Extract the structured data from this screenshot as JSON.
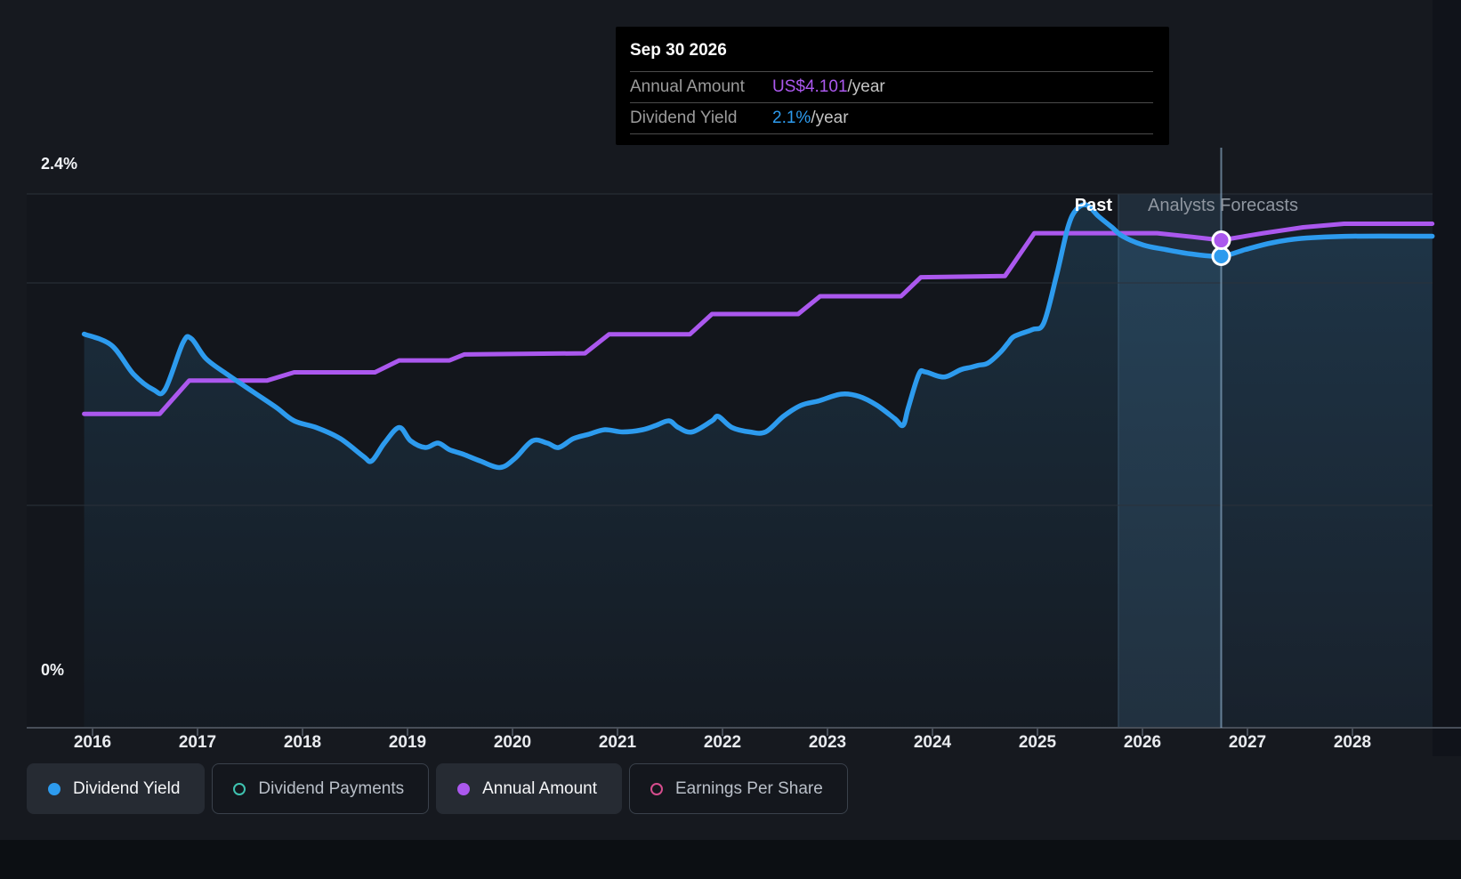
{
  "colors": {
    "background": "#16191F",
    "plot_background": "#13161C",
    "gridline": "#2B313A",
    "axis": "#474E58",
    "yield_blue": "#2D9BEE",
    "amount_purple": "#AB58EE",
    "payments_teal": "#3FC3B0",
    "eps_pink": "#D64D8D",
    "forecast_overlay": "rgba(108,170,220,0.055)",
    "hover_band": "rgba(120,185,235,0.10)",
    "area_fill_top": "rgba(58,142,196,0.22)",
    "area_fill_bottom": "rgba(58,142,196,0.04)"
  },
  "tooltip": {
    "title": "Sep 30 2026",
    "rows": [
      {
        "label": "Annual Amount",
        "value": "US$4.101",
        "suffix": "/year",
        "color": "#AB58EE"
      },
      {
        "label": "Dividend Yield",
        "value": "2.1%",
        "suffix": "/year",
        "color": "#2D9BEE"
      }
    ]
  },
  "legend": {
    "items": [
      {
        "label": "Dividend Yield",
        "color": "#2D9BEE",
        "marker": "filled",
        "active": true
      },
      {
        "label": "Dividend Payments",
        "color": "#3FC3B0",
        "marker": "ring",
        "active": false
      },
      {
        "label": "Annual Amount",
        "color": "#AB58EE",
        "marker": "filled",
        "active": true
      },
      {
        "label": "Earnings Per Share",
        "color": "#D64D8D",
        "marker": "ring",
        "active": false
      }
    ]
  },
  "chart_data": {
    "type": "line",
    "x_axis": {
      "ticks": [
        2016,
        2017,
        2018,
        2019,
        2020,
        2021,
        2022,
        2023,
        2024,
        2025,
        2026,
        2027,
        2028
      ],
      "range": [
        2015.92,
        2028.76
      ],
      "grid": false
    },
    "y_axis": {
      "unit": "%",
      "range": [
        0,
        2.4
      ],
      "label_top": "2.4%",
      "label_bottom": "0%",
      "gridlines_pct": [
        1.0,
        2.0,
        2.4
      ],
      "grid": true
    },
    "annotations": {
      "past_label": "Past",
      "forecast_label": "Analysts Forecasts",
      "forecast_start_year": 2025.77,
      "hover_year": 2026.75
    },
    "series": [
      {
        "name": "Dividend Yield",
        "type": "line",
        "unit": "%",
        "color": "#2D9BEE",
        "area_fill": true,
        "points": [
          [
            2015.92,
            1.77
          ],
          [
            2016.18,
            1.72
          ],
          [
            2016.39,
            1.59
          ],
          [
            2016.58,
            1.52
          ],
          [
            2016.69,
            1.52
          ],
          [
            2016.86,
            1.73
          ],
          [
            2016.94,
            1.75
          ],
          [
            2017.08,
            1.66
          ],
          [
            2017.28,
            1.59
          ],
          [
            2017.53,
            1.51
          ],
          [
            2017.75,
            1.44
          ],
          [
            2017.92,
            1.38
          ],
          [
            2018.13,
            1.35
          ],
          [
            2018.36,
            1.3
          ],
          [
            2018.58,
            1.22
          ],
          [
            2018.66,
            1.2
          ],
          [
            2018.78,
            1.28
          ],
          [
            2018.92,
            1.35
          ],
          [
            2019.03,
            1.29
          ],
          [
            2019.17,
            1.26
          ],
          [
            2019.29,
            1.28
          ],
          [
            2019.4,
            1.25
          ],
          [
            2019.53,
            1.23
          ],
          [
            2019.69,
            1.2
          ],
          [
            2019.88,
            1.17
          ],
          [
            2020.02,
            1.21
          ],
          [
            2020.19,
            1.29
          ],
          [
            2020.33,
            1.28
          ],
          [
            2020.44,
            1.26
          ],
          [
            2020.58,
            1.3
          ],
          [
            2020.73,
            1.32
          ],
          [
            2020.88,
            1.34
          ],
          [
            2021.05,
            1.33
          ],
          [
            2021.24,
            1.34
          ],
          [
            2021.37,
            1.36
          ],
          [
            2021.49,
            1.38
          ],
          [
            2021.58,
            1.35
          ],
          [
            2021.71,
            1.33
          ],
          [
            2021.9,
            1.38
          ],
          [
            2021.96,
            1.4
          ],
          [
            2022.09,
            1.35
          ],
          [
            2022.26,
            1.33
          ],
          [
            2022.41,
            1.33
          ],
          [
            2022.58,
            1.4
          ],
          [
            2022.75,
            1.45
          ],
          [
            2022.92,
            1.47
          ],
          [
            2023.13,
            1.5
          ],
          [
            2023.3,
            1.49
          ],
          [
            2023.47,
            1.45
          ],
          [
            2023.64,
            1.39
          ],
          [
            2023.72,
            1.36
          ],
          [
            2023.77,
            1.44
          ],
          [
            2023.87,
            1.59
          ],
          [
            2023.93,
            1.6
          ],
          [
            2024.06,
            1.58
          ],
          [
            2024.14,
            1.58
          ],
          [
            2024.27,
            1.61
          ],
          [
            2024.36,
            1.62
          ],
          [
            2024.44,
            1.63
          ],
          [
            2024.53,
            1.64
          ],
          [
            2024.65,
            1.69
          ],
          [
            2024.72,
            1.73
          ],
          [
            2024.78,
            1.76
          ],
          [
            2024.95,
            1.79
          ],
          [
            2025.06,
            1.82
          ],
          [
            2025.18,
            2.03
          ],
          [
            2025.29,
            2.25
          ],
          [
            2025.37,
            2.33
          ],
          [
            2025.47,
            2.35
          ],
          [
            2025.58,
            2.3
          ],
          [
            2025.71,
            2.25
          ],
          [
            2025.81,
            2.21
          ],
          [
            2026.01,
            2.17
          ],
          [
            2026.22,
            2.15
          ],
          [
            2026.47,
            2.13
          ],
          [
            2026.75,
            2.12
          ],
          [
            2026.98,
            2.15
          ],
          [
            2027.23,
            2.18
          ],
          [
            2027.51,
            2.2
          ],
          [
            2028.0,
            2.21
          ],
          [
            2028.76,
            2.21
          ]
        ]
      },
      {
        "name": "Annual Amount",
        "type": "step-line",
        "unit": "US$/year",
        "color": "#AB58EE",
        "area_fill": false,
        "scale_note": "USD values estimated from the single labeled point US$4.101 at Sep 30 2026; plotted against the shared axis",
        "usd_per_axis_unit": 1.871,
        "points": [
          [
            2015.92,
            2.64
          ],
          [
            2016.64,
            2.64
          ],
          [
            2016.92,
            2.92
          ],
          [
            2017.66,
            2.92
          ],
          [
            2017.92,
            2.99
          ],
          [
            2018.69,
            2.99
          ],
          [
            2018.92,
            3.09
          ],
          [
            2019.4,
            3.09
          ],
          [
            2019.54,
            3.14
          ],
          [
            2020.69,
            3.15
          ],
          [
            2020.92,
            3.31
          ],
          [
            2021.69,
            3.31
          ],
          [
            2021.9,
            3.48
          ],
          [
            2022.72,
            3.48
          ],
          [
            2022.93,
            3.63
          ],
          [
            2023.7,
            3.63
          ],
          [
            2023.89,
            3.79
          ],
          [
            2024.69,
            3.8
          ],
          [
            2024.97,
            4.16
          ],
          [
            2026.14,
            4.16
          ],
          [
            2026.47,
            4.13
          ],
          [
            2026.75,
            4.101
          ],
          [
            2027.15,
            4.16
          ],
          [
            2027.53,
            4.21
          ],
          [
            2027.92,
            4.24
          ],
          [
            2028.76,
            4.24
          ]
        ]
      }
    ],
    "markers": [
      {
        "series": "Annual Amount",
        "year": 2026.75,
        "value": 4.101
      },
      {
        "series": "Dividend Yield",
        "year": 2026.75,
        "value": 2.12
      }
    ]
  }
}
